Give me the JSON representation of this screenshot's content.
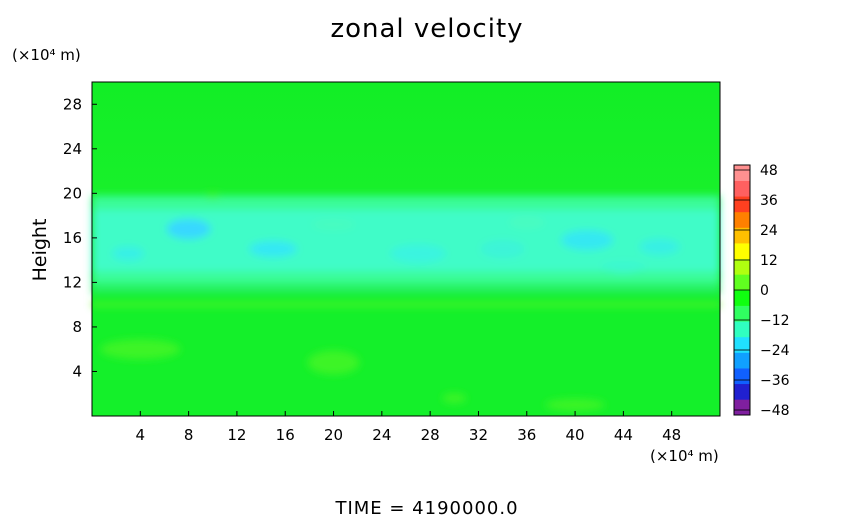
{
  "title": "zonal velocity",
  "y_unit": "(×10⁴ m)",
  "x_unit": "(×10⁴ m)",
  "footer": "TIME  =  4190000.0",
  "chart_data": {
    "type": "heatmap",
    "title": "zonal velocity",
    "ylabel": "Height",
    "xlabel": "",
    "x_ticks": [
      4,
      8,
      12,
      16,
      20,
      24,
      28,
      32,
      36,
      40,
      44,
      48
    ],
    "y_ticks": [
      4,
      8,
      12,
      16,
      20,
      24,
      28
    ],
    "xlim": [
      0,
      52
    ],
    "ylim": [
      0,
      30
    ],
    "colorbar": {
      "labels": [
        48,
        36,
        24,
        12,
        0,
        -12,
        -24,
        -36,
        -48
      ],
      "range": [
        -48,
        48
      ],
      "colors": [
        "#7f1f9f",
        "#2020d0",
        "#1060ff",
        "#10a0ff",
        "#20e0ff",
        "#30ffc0",
        "#30ff60",
        "#10ff10",
        "#60ff20",
        "#b0ff10",
        "#ffff00",
        "#ffc000",
        "#ff8000",
        "#ff4020",
        "#ff6060",
        "#ff9090"
      ]
    },
    "regions": [
      {
        "y_range": [
          20,
          30
        ],
        "approx_value": 0,
        "description": "near-zero flow"
      },
      {
        "y_range": [
          12,
          20
        ],
        "approx_value": -12,
        "description": "negative zonal velocity band"
      },
      {
        "y_range": [
          0,
          12
        ],
        "approx_value": 2,
        "description": "weak positive flow"
      }
    ]
  }
}
